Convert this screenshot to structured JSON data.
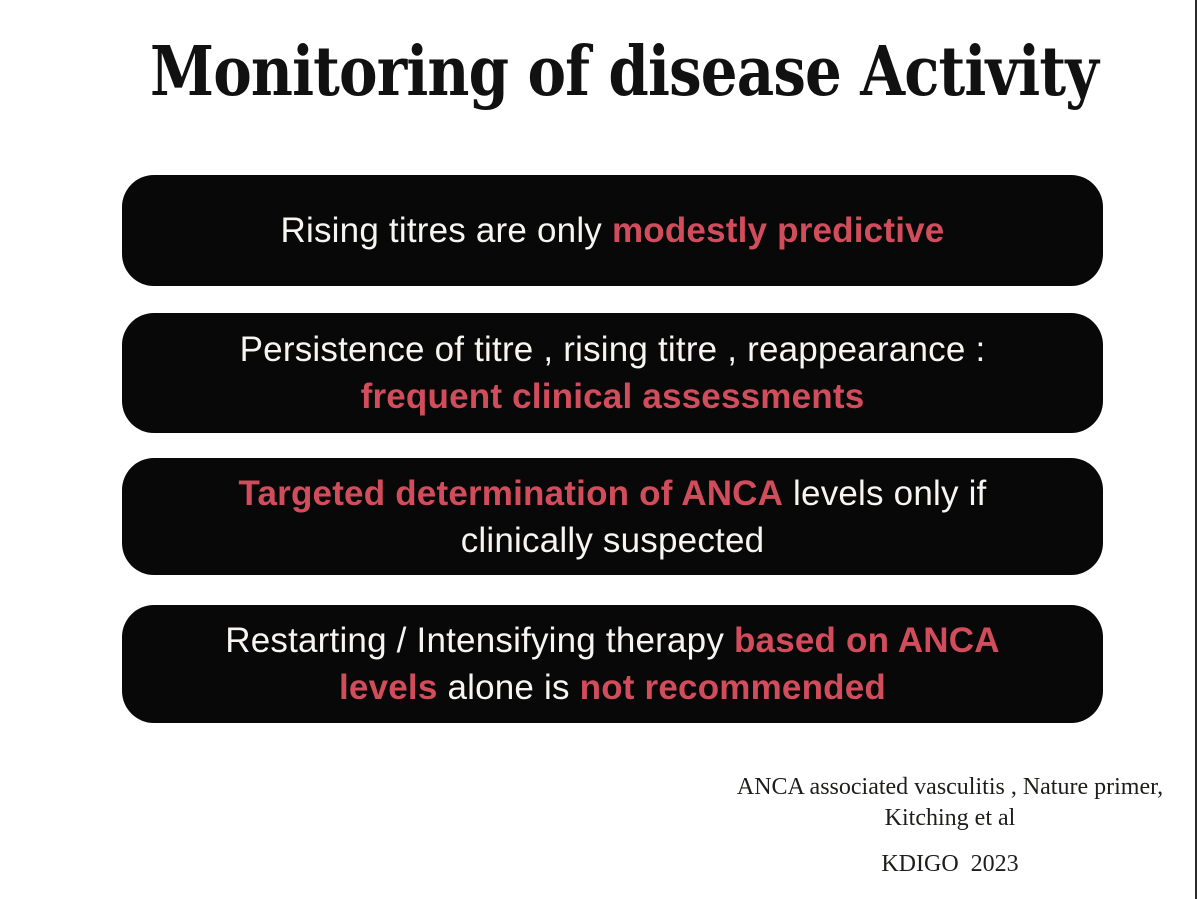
{
  "colors": {
    "background": "#ffffff",
    "box_background": "#080808",
    "body_text": "#f7f5f2",
    "accent_red": "#d24d5c",
    "title_text": "#111111",
    "citation_text": "#1d1d1b"
  },
  "title": "Monitoring of disease Activity",
  "boxes": [
    {
      "lines": [
        [
          {
            "text": "Rising titres are only ",
            "style": "white"
          },
          {
            "text": "modestly predictive",
            "style": "red"
          }
        ]
      ]
    },
    {
      "lines": [
        [
          {
            "text": "Persistence of titre , rising titre , reappearance :",
            "style": "white"
          }
        ],
        [
          {
            "text": "frequent clinical assessments",
            "style": "red"
          }
        ]
      ]
    },
    {
      "lines": [
        [
          {
            "text": "Targeted determination of ANCA",
            "style": "red"
          },
          {
            "text": " levels only if",
            "style": "white"
          }
        ],
        [
          {
            "text": "clinically suspected",
            "style": "white"
          }
        ]
      ]
    },
    {
      "lines": [
        [
          {
            "text": "Restarting / Intensifying therapy ",
            "style": "white"
          },
          {
            "text": "based on ANCA",
            "style": "red"
          }
        ],
        [
          {
            "text": "levels",
            "style": "red"
          },
          {
            "text": " alone is ",
            "style": "white"
          },
          {
            "text": "not recommended",
            "style": "red"
          }
        ]
      ]
    }
  ],
  "footer": {
    "line1": "ANCA associated vasculitis , Nature primer,",
    "line2": "Kitching et al",
    "line3": "KDIGO  2023"
  }
}
